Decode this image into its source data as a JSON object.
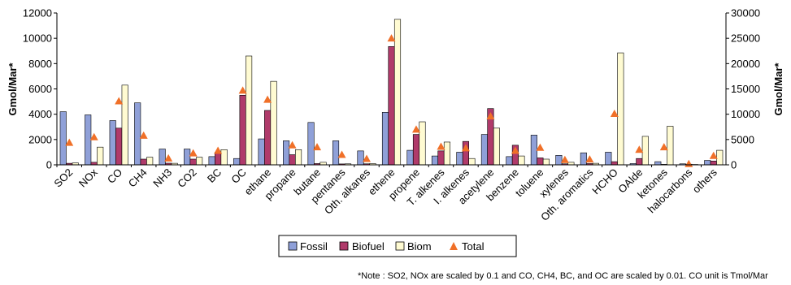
{
  "chart_data": {
    "type": "bar",
    "categories": [
      "SO2",
      "NOx",
      "CO",
      "CH4",
      "NH3",
      "CO2",
      "BC",
      "OC",
      "ethane",
      "propane",
      "butane",
      "pentanes",
      "Oth. alkanes",
      "ethene",
      "propene",
      "T. alkenes",
      "I. alkenes",
      "acetylene",
      "benzene",
      "toluene",
      "xylenes",
      "Oth. aromatics",
      "HCHO",
      "OAlde",
      "ketones",
      "halocarbons",
      "others"
    ],
    "series": [
      {
        "name": "Fossil",
        "color": "#8fa0d8",
        "axis": "left",
        "values": [
          4200,
          3950,
          3500,
          4900,
          1250,
          1250,
          650,
          500,
          2050,
          1900,
          3350,
          1900,
          1100,
          4150,
          1150,
          700,
          1000,
          2400,
          650,
          2350,
          750,
          950,
          1000,
          100,
          250,
          80,
          350
        ]
      },
      {
        "name": "Biofuel",
        "color": "#b03a6a",
        "axis": "left",
        "values": [
          120,
          200,
          2900,
          450,
          130,
          450,
          1000,
          5500,
          4300,
          800,
          100,
          70,
          80,
          9350,
          2400,
          1100,
          1850,
          4450,
          1550,
          550,
          80,
          100,
          250,
          500,
          40,
          50,
          300
        ]
      },
      {
        "name": "Biom",
        "color": "#fffbd2",
        "axis": "left",
        "values": [
          150,
          1400,
          6300,
          600,
          120,
          600,
          1200,
          8600,
          6600,
          1200,
          200,
          80,
          100,
          11500,
          3400,
          1800,
          500,
          2900,
          700,
          450,
          200,
          120,
          8850,
          2250,
          3050,
          30,
          1150
        ]
      },
      {
        "name": "Total",
        "color": "#f07028",
        "axis": "right",
        "marker": "triangle",
        "values": [
          4400,
          5500,
          12600,
          5800,
          1300,
          2300,
          2800,
          14700,
          12900,
          3900,
          3500,
          2000,
          1200,
          25000,
          7000,
          3600,
          3300,
          9600,
          2800,
          3400,
          1000,
          1100,
          10100,
          3000,
          3500,
          200,
          1800
        ]
      }
    ],
    "yaxis_left": {
      "label": "Gmol/Mar*",
      "ylim": [
        0,
        12000
      ],
      "ticks": [
        "0",
        "2000",
        "4000",
        "6000",
        "8000",
        "10000",
        "12000"
      ]
    },
    "yaxis_right": {
      "label": "Gmol/Mar*",
      "ylim": [
        0,
        30000
      ],
      "ticks": [
        "0",
        "5000",
        "10000",
        "15000",
        "20000",
        "25000",
        "30000"
      ]
    },
    "legend_position": "bottom-center",
    "grid": false,
    "note": "*Note : SO2, NOx are scaled by 0.1 and CO, CH4, BC, and OC are scaled by 0.01.   CO unit is Tmol/Mar"
  }
}
